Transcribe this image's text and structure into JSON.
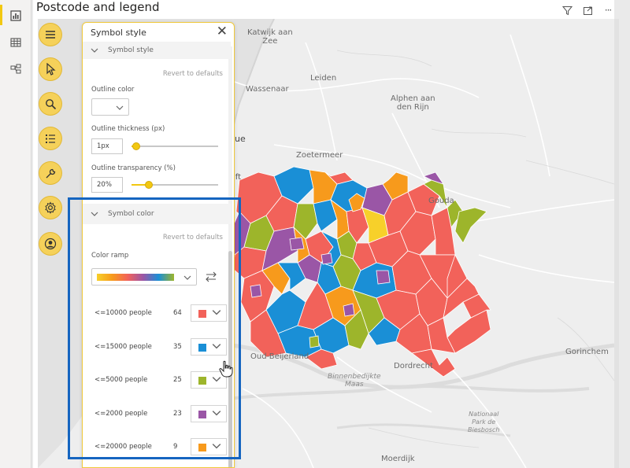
{
  "visual": {
    "title": "Postcode and legend"
  },
  "map": {
    "labels": [
      {
        "id": "katwijk",
        "text": "Katwijk aan\nZee"
      },
      {
        "id": "leiden",
        "text": "Leiden"
      },
      {
        "id": "wassenaar",
        "text": "Wassenaar"
      },
      {
        "id": "alphen",
        "text": "Alphen aan\nden Rijn"
      },
      {
        "id": "zoetermeer",
        "text": "Zoetermeer"
      },
      {
        "id": "gouda",
        "text": "Gouda"
      },
      {
        "id": "oud-beijerland",
        "text": "Oud-Beijerland"
      },
      {
        "id": "dordrecht",
        "text": "Dordrecht"
      },
      {
        "id": "gorinchem",
        "text": "Gorinchem"
      },
      {
        "id": "moerdijk",
        "text": "Moerdijk"
      },
      {
        "id": "ue",
        "text": "ue"
      },
      {
        "id": "lft",
        "text": "lft"
      }
    ],
    "italic_labels": [
      {
        "id": "binnenbedijkte",
        "text": "Binnenbedijkte\nMaas"
      },
      {
        "id": "nationaal",
        "text": "Nationaal\nPark de\nBiesbosch"
      }
    ]
  },
  "panel": {
    "title": "Symbol style",
    "sections": {
      "symbol_style": {
        "heading": "Symbol style",
        "revert": "Revert to defaults",
        "outline_color_label": "Outline color",
        "outline_thickness_label": "Outline thickness (px)",
        "outline_thickness_value": "1px",
        "outline_thickness_fraction": 0.05,
        "outline_transparency_label": "Outline transparency (%)",
        "outline_transparency_value": "20%",
        "outline_transparency_fraction": 0.2
      },
      "symbol_color": {
        "heading": "Symbol color",
        "revert": "Revert to defaults",
        "color_ramp_label": "Color ramp",
        "legend": [
          {
            "label": "<=10000 people",
            "count": "64",
            "color": "#f2625a"
          },
          {
            "label": "<=15000 people",
            "count": "35",
            "color": "#1a8fd6"
          },
          {
            "label": "<=5000 people",
            "count": "25",
            "color": "#9db52b"
          },
          {
            "label": "<=2000 people",
            "count": "23",
            "color": "#9a56a6"
          },
          {
            "label": "<=20000 people",
            "count": "9",
            "color": "#f79a1c"
          }
        ]
      }
    }
  },
  "colors": {
    "accent": "#f2c811",
    "highlight": "#1565c0"
  },
  "icons": [
    "bar-chart-icon",
    "table-icon",
    "model-icon",
    "hamburger-icon",
    "pointer-icon",
    "search-icon",
    "list-icon",
    "wrench-icon",
    "gear-icon",
    "user-icon",
    "filter-icon",
    "expand-icon",
    "more-icon",
    "close-icon",
    "swap-icon",
    "chevron-down-icon",
    "hand-cursor-icon"
  ]
}
